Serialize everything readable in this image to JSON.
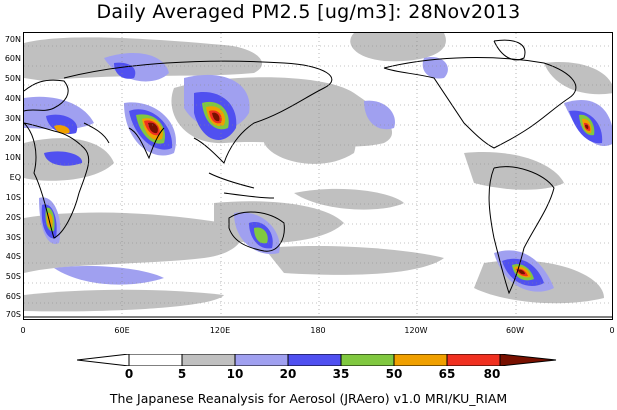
{
  "title": "Daily Averaged PM2.5 [ug/m3]: 28Nov2013",
  "lat_labels": [
    "70N",
    "60N",
    "50N",
    "40N",
    "30N",
    "20N",
    "10N",
    "EQ",
    "10S",
    "20S",
    "30S",
    "40S",
    "50S",
    "60S",
    "70S"
  ],
  "lon_labels": [
    "0",
    "60E",
    "120E",
    "180",
    "120W",
    "60W",
    "0"
  ],
  "colorbar": {
    "levels": [
      "0",
      "5",
      "10",
      "20",
      "35",
      "50",
      "65",
      "80"
    ],
    "colors": [
      "#ffffff",
      "#c0c0c0",
      "#a0a0f0",
      "#5050f0",
      "#80c840",
      "#f0a000",
      "#f03020",
      "#781000"
    ]
  },
  "footer": "The Japanese Reanalysis for Aerosol (JRAero) v1.0 MRI/KU_RIAM"
}
